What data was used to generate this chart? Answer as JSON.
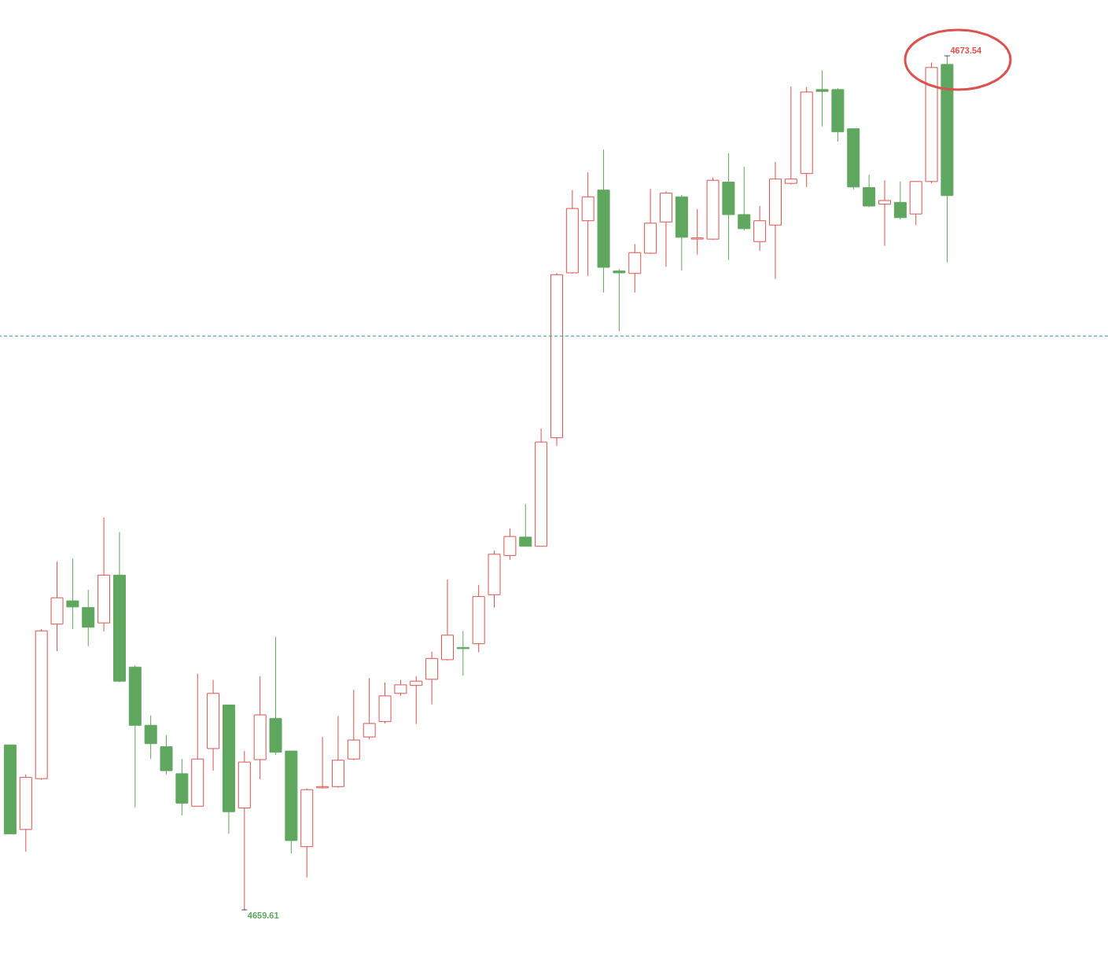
{
  "chart_data": {
    "type": "candlestick",
    "categories": [
      null,
      null,
      null,
      null,
      null,
      null,
      null,
      null,
      null,
      null,
      null,
      null,
      null,
      null,
      null,
      null,
      null,
      null,
      null,
      null,
      null,
      null,
      null,
      null,
      null,
      null,
      null,
      null,
      null,
      null,
      null,
      null,
      null,
      null,
      null,
      null,
      null,
      null,
      null,
      null,
      null,
      null,
      null,
      null,
      null,
      null,
      null,
      null,
      null,
      null,
      null,
      null,
      null,
      null,
      null,
      null,
      null,
      null,
      null,
      null,
      null
    ],
    "ohlc": [
      [
        4662.3,
        4662.3,
        4660.85,
        4660.85
      ],
      [
        4660.92,
        4661.82,
        4660.56,
        4661.77
      ],
      [
        4661.75,
        4664.19,
        4661.73,
        4664.16
      ],
      [
        4664.27,
        4665.29,
        4663.83,
        4664.7
      ],
      [
        4664.65,
        4665.34,
        4664.19,
        4664.55
      ],
      [
        4664.54,
        4664.83,
        4663.91,
        4664.22
      ],
      [
        4664.29,
        4666.01,
        4664.15,
        4665.07
      ],
      [
        4665.07,
        4665.77,
        4663.32,
        4663.34
      ],
      [
        4663.57,
        4663.6,
        4661.28,
        4662.62
      ],
      [
        4662.62,
        4662.78,
        4662.07,
        4662.32
      ],
      [
        4662.27,
        4662.46,
        4661.82,
        4661.88
      ],
      [
        4661.83,
        4662.07,
        4661.15,
        4661.35
      ],
      [
        4661.3,
        4663.46,
        4661.29,
        4662.07
      ],
      [
        4662.24,
        4663.36,
        4661.88,
        4663.14
      ],
      [
        4662.95,
        4662.95,
        4660.85,
        4661.21
      ],
      [
        4661.27,
        4662.2,
        4659.61,
        4662.02
      ],
      [
        4662.06,
        4663.42,
        4661.74,
        4662.79
      ],
      [
        4662.73,
        4664.06,
        4662.14,
        4662.18
      ],
      [
        4662.2,
        4662.2,
        4660.53,
        4660.74
      ],
      [
        4660.64,
        4661.59,
        4660.14,
        4661.57
      ],
      [
        4661.6,
        4662.43,
        4661.59,
        4661.62
      ],
      [
        4661.62,
        4662.77,
        4661.6,
        4662.05
      ],
      [
        4662.07,
        4663.2,
        4662.05,
        4662.38
      ],
      [
        4662.43,
        4663.39,
        4662.39,
        4662.65
      ],
      [
        4662.68,
        4663.32,
        4662.65,
        4663.1
      ],
      [
        4663.14,
        4663.36,
        4663.1,
        4663.28
      ],
      [
        4663.27,
        4663.42,
        4662.64,
        4663.34
      ],
      [
        4663.37,
        4663.82,
        4662.96,
        4663.71
      ],
      [
        4663.69,
        4665.0,
        4663.68,
        4664.09
      ],
      [
        4663.89,
        4664.16,
        4663.43,
        4663.87
      ],
      [
        4663.95,
        4664.91,
        4663.81,
        4664.72
      ],
      [
        4664.75,
        4665.47,
        4664.54,
        4665.41
      ],
      [
        4665.39,
        4665.83,
        4665.32,
        4665.7
      ],
      [
        4665.69,
        4666.23,
        4665.54,
        4665.54
      ],
      [
        4665.54,
        4667.46,
        4665.54,
        4667.24
      ],
      [
        4667.31,
        4670.0,
        4667.18,
        4669.97
      ],
      [
        4670.0,
        4671.35,
        4669.99,
        4671.05
      ],
      [
        4670.85,
        4671.64,
        4669.95,
        4671.24
      ],
      [
        4671.35,
        4672.01,
        4669.68,
        4670.09
      ],
      [
        4670.03,
        4670.06,
        4669.05,
        4670.0
      ],
      [
        4669.99,
        4670.47,
        4669.68,
        4670.33
      ],
      [
        4670.32,
        4671.37,
        4670.31,
        4670.81
      ],
      [
        4670.83,
        4671.33,
        4670.1,
        4671.3
      ],
      [
        4671.24,
        4671.27,
        4670.04,
        4670.58
      ],
      [
        4670.55,
        4671.04,
        4670.3,
        4670.57
      ],
      [
        4670.55,
        4671.55,
        4670.54,
        4671.51
      ],
      [
        4671.48,
        4671.95,
        4670.21,
        4670.95
      ],
      [
        4670.95,
        4671.73,
        4670.69,
        4670.72
      ],
      [
        4670.51,
        4671.09,
        4670.36,
        4670.85
      ],
      [
        4670.78,
        4671.81,
        4669.9,
        4671.53
      ],
      [
        4671.46,
        4673.04,
        4671.44,
        4671.53
      ],
      [
        4671.62,
        4673.03,
        4671.4,
        4672.95
      ],
      [
        4672.99,
        4673.3,
        4672.39,
        4672.96
      ],
      [
        4672.99,
        4673.01,
        4672.14,
        4672.3
      ],
      [
        4672.35,
        4672.35,
        4671.36,
        4671.4
      ],
      [
        4671.39,
        4671.6,
        4671.07,
        4671.09
      ],
      [
        4671.12,
        4671.51,
        4670.44,
        4671.18
      ],
      [
        4671.15,
        4671.49,
        4670.87,
        4670.9
      ],
      [
        4670.96,
        4671.49,
        4670.78,
        4671.49
      ],
      [
        4671.49,
        4673.43,
        4671.46,
        4673.35
      ],
      [
        4673.4,
        4673.54,
        4670.17,
        4671.26
      ]
    ],
    "colors": [
      "#5fa75f",
      "#d9534f",
      "#d9534f",
      "#d9534f",
      "#5fa75f",
      "#5fa75f",
      "#d9534f",
      "#5fa75f",
      "#5fa75f",
      "#5fa75f",
      "#5fa75f",
      "#5fa75f",
      "#d9534f",
      "#d9534f",
      "#5fa75f",
      "#d9534f",
      "#d9534f",
      "#5fa75f",
      "#5fa75f",
      "#d9534f",
      "#d9534f",
      "#d9534f",
      "#d9534f",
      "#d9534f",
      "#d9534f",
      "#d9534f",
      "#d9534f",
      "#d9534f",
      "#d9534f",
      "#5fa75f",
      "#d9534f",
      "#d9534f",
      "#d9534f",
      "#5fa75f",
      "#d9534f",
      "#d9534f",
      "#d9534f",
      "#d9534f",
      "#5fa75f",
      "#5fa75f",
      "#d9534f",
      "#d9534f",
      "#d9534f",
      "#5fa75f",
      "#d9534f",
      "#d9534f",
      "#5fa75f",
      "#5fa75f",
      "#d9534f",
      "#d9534f",
      "#d9534f",
      "#d9534f",
      "#5fa75f",
      "#5fa75f",
      "#5fa75f",
      "#5fa75f",
      "#d9534f",
      "#5fa75f",
      "#d9534f",
      "#d9534f",
      "#5fa75f"
    ],
    "ref_lines": [
      {
        "axis": "y",
        "value": 4668.97,
        "color": "#3a96a6",
        "line_style": "dashed"
      }
    ],
    "annotations": [
      "4673.54",
      "4659.61"
    ]
  }
}
